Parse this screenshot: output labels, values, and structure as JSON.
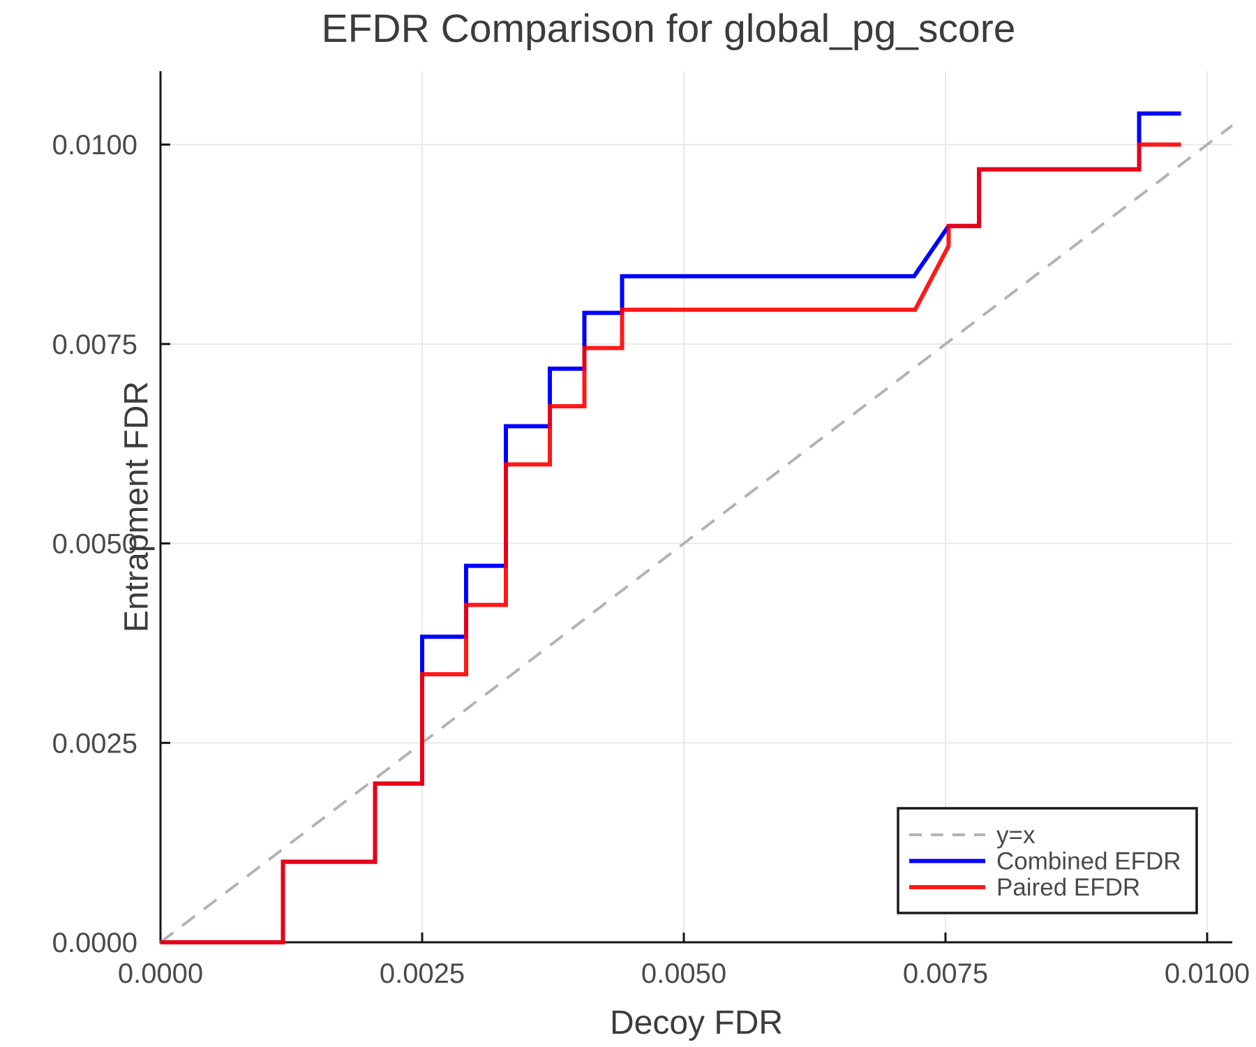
{
  "title": "EFDR Comparison for global_pg_score",
  "chart_data": {
    "type": "line",
    "title": "EFDR Comparison for global_pg_score",
    "xlabel": "Decoy FDR",
    "ylabel": "Entrapment FDR",
    "xlim": [
      0.0,
      0.01024
    ],
    "ylim": [
      0.0,
      0.01092
    ],
    "grid": true,
    "x_ticks": [
      {
        "value": 0.0,
        "label": "0.0000"
      },
      {
        "value": 0.0025,
        "label": "0.0025"
      },
      {
        "value": 0.005,
        "label": "0.0050"
      },
      {
        "value": 0.0075,
        "label": "0.0075"
      },
      {
        "value": 0.01,
        "label": "0.0100"
      }
    ],
    "y_ticks": [
      {
        "value": 0.0,
        "label": "0.0000"
      },
      {
        "value": 0.0025,
        "label": "0.0025"
      },
      {
        "value": 0.005,
        "label": "0.0050"
      },
      {
        "value": 0.0075,
        "label": "0.0075"
      },
      {
        "value": 0.01,
        "label": "0.0100"
      }
    ],
    "legend_position": "bottom-right",
    "series": [
      {
        "name": "y=x",
        "color": "#b3b3b3",
        "dashed": true,
        "width": 4,
        "opacity": 1,
        "points": [
          [
            0.0,
            0.0
          ],
          [
            0.01024,
            0.01024
          ]
        ]
      },
      {
        "name": "Combined EFDR",
        "color": "#0000ff",
        "dashed": false,
        "width": 6,
        "opacity": 1,
        "points": [
          [
            0.0,
            0.0
          ],
          [
            0.00117,
            0.0
          ],
          [
            0.00117,
            0.00101
          ],
          [
            0.00205,
            0.00101
          ],
          [
            0.00205,
            0.00199
          ],
          [
            0.0025,
            0.00199
          ],
          [
            0.0025,
            0.00383
          ],
          [
            0.00292,
            0.00383
          ],
          [
            0.00292,
            0.00472
          ],
          [
            0.0033,
            0.00472
          ],
          [
            0.0033,
            0.00647
          ],
          [
            0.00372,
            0.00647
          ],
          [
            0.00372,
            0.00719
          ],
          [
            0.00405,
            0.00719
          ],
          [
            0.00405,
            0.00789
          ],
          [
            0.00441,
            0.00789
          ],
          [
            0.00441,
            0.00835
          ],
          [
            0.0072,
            0.00835
          ],
          [
            0.00753,
            0.00898
          ],
          [
            0.00782,
            0.00898
          ],
          [
            0.00782,
            0.00969
          ],
          [
            0.00935,
            0.00969
          ],
          [
            0.00935,
            0.01039
          ],
          [
            0.00975,
            0.01039
          ]
        ]
      },
      {
        "name": "Paired EFDR",
        "color": "#ff0000",
        "dashed": false,
        "width": 6,
        "opacity": 0.9,
        "points": [
          [
            0.0,
            0.0
          ],
          [
            0.00117,
            0.0
          ],
          [
            0.00117,
            0.00101
          ],
          [
            0.00205,
            0.00101
          ],
          [
            0.00205,
            0.00199
          ],
          [
            0.0025,
            0.00199
          ],
          [
            0.0025,
            0.00336
          ],
          [
            0.00292,
            0.00336
          ],
          [
            0.00292,
            0.00423
          ],
          [
            0.0033,
            0.00423
          ],
          [
            0.0033,
            0.00599
          ],
          [
            0.00372,
            0.00599
          ],
          [
            0.00372,
            0.00672
          ],
          [
            0.00405,
            0.00672
          ],
          [
            0.00405,
            0.00745
          ],
          [
            0.00441,
            0.00745
          ],
          [
            0.00441,
            0.00793
          ],
          [
            0.00721,
            0.00793
          ],
          [
            0.00753,
            0.00873
          ],
          [
            0.00753,
            0.00898
          ],
          [
            0.00782,
            0.00898
          ],
          [
            0.00782,
            0.00969
          ],
          [
            0.00935,
            0.00969
          ],
          [
            0.00935,
            0.01
          ],
          [
            0.00975,
            0.01
          ]
        ]
      }
    ]
  }
}
